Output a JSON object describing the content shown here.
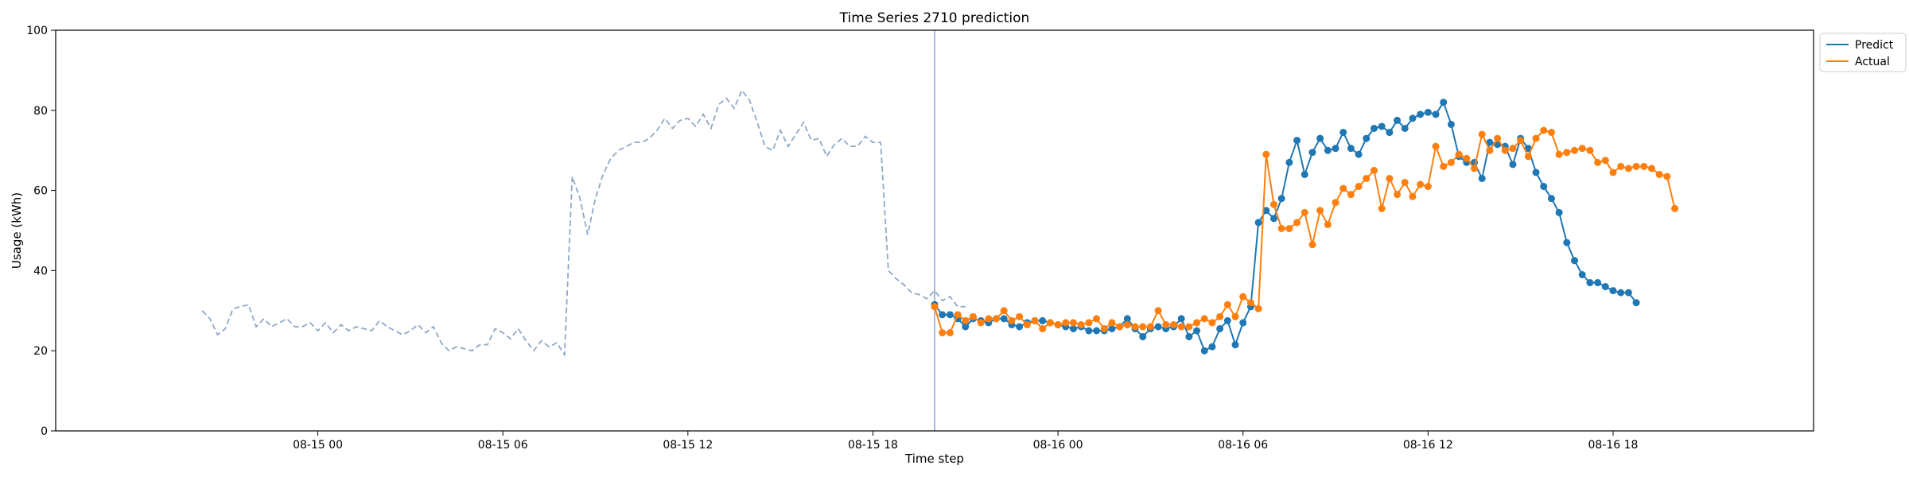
{
  "chart_data": {
    "type": "line",
    "title": "Time Series 2710 prediction",
    "xlabel": "Time step",
    "ylabel": "Usage (kWh)",
    "ylim": [
      0,
      100
    ],
    "y_ticks": [
      "0",
      "20",
      "40",
      "60",
      "80",
      "100"
    ],
    "x_ticks": [
      {
        "label": "08-15 00",
        "hour": 24
      },
      {
        "label": "08-15 06",
        "hour": 30
      },
      {
        "label": "08-15 12",
        "hour": 36
      },
      {
        "label": "08-15 18",
        "hour": 42
      },
      {
        "label": "08-16 00",
        "hour": 48
      },
      {
        "label": "08-16 06",
        "hour": 54
      },
      {
        "label": "08-16 12",
        "hour": 60
      },
      {
        "label": "08-16 18",
        "hour": 66
      }
    ],
    "x_range_hours": [
      15.5,
      72.5
    ],
    "forecast_start_hour": 44,
    "step_hours": 0.25,
    "legend": {
      "position": "top-right",
      "entries": [
        "Predict",
        "Actual"
      ]
    },
    "colors": {
      "history": "#8fa8c8",
      "predict": "#1f77b4",
      "actual": "#ff7f0e",
      "vline": "#8fa0d0"
    },
    "history": {
      "start_hour": 20.25,
      "values": [
        30,
        28,
        24,
        25.5,
        30.5,
        31,
        31.5,
        26,
        28,
        26,
        27,
        28,
        26,
        26,
        27,
        25,
        27,
        24.5,
        26.5,
        25,
        26,
        25.5,
        25,
        27.5,
        26,
        25,
        24,
        25,
        26.5,
        24.5,
        26,
        22,
        20,
        21,
        20.5,
        20,
        21.5,
        21.5,
        25.5,
        24.5,
        23,
        25.5,
        22.5,
        20,
        22.5,
        21,
        22,
        19,
        63.5,
        58,
        49,
        58,
        64,
        68,
        70,
        71,
        72,
        72,
        73,
        75,
        78,
        75.5,
        77.5,
        78,
        76,
        79,
        75.5,
        81.5,
        83,
        80.5,
        85,
        82.5,
        77,
        71,
        70,
        75,
        71,
        74,
        77,
        72.5,
        73,
        68.5,
        71.5,
        73,
        71,
        71,
        73.5,
        72,
        72,
        40,
        38,
        36.5,
        34.5,
        34,
        33,
        35,
        32.5,
        33.5,
        31,
        31
      ]
    },
    "series": [
      {
        "name": "Predict",
        "values": [
          31.5,
          29,
          29,
          28,
          26,
          28,
          27.5,
          27,
          28,
          28,
          26.5,
          26,
          27,
          27.5,
          27.5,
          27,
          26.5,
          26,
          25.5,
          26,
          25,
          25,
          25,
          25.5,
          26,
          28,
          25.5,
          23.5,
          25.5,
          26,
          25.5,
          26,
          28,
          23.5,
          25,
          20,
          21,
          25.5,
          27.5,
          21.5,
          27,
          31,
          52,
          55,
          53,
          58,
          67,
          72.5,
          64,
          69.5,
          73,
          70,
          70.5,
          74.5,
          70.5,
          69,
          73,
          75.5,
          76,
          74.5,
          77.5,
          75.5,
          78,
          79,
          79.5,
          79,
          82,
          76.5,
          68.5,
          67,
          67,
          63,
          72,
          71.5,
          71,
          66.5,
          73,
          70.5,
          64.5,
          61,
          58,
          54.5,
          47,
          42.5,
          39,
          37,
          37,
          36,
          35,
          34.5,
          34.5,
          32
        ]
      },
      {
        "name": "Actual",
        "values": [
          31,
          24.5,
          24.5,
          29,
          27.5,
          28.5,
          27,
          28,
          28,
          30,
          27.5,
          28.5,
          26.5,
          27.5,
          25.5,
          27,
          26.5,
          27,
          27,
          26.5,
          27,
          28,
          25.5,
          27,
          26,
          26.5,
          26,
          26,
          26,
          30,
          26.5,
          26.5,
          26,
          26,
          27,
          28,
          27,
          28.5,
          31.5,
          28.5,
          33.5,
          32,
          30.5,
          69,
          56.5,
          50.5,
          50.5,
          52,
          54.5,
          46.5,
          55,
          51.5,
          57,
          60.5,
          59,
          61,
          63,
          65,
          55.5,
          63,
          59,
          62,
          58.5,
          61.5,
          61,
          71,
          66,
          67,
          69,
          68,
          65.5,
          74,
          70,
          73,
          70,
          70.5,
          72.5,
          68.5,
          73,
          75,
          74.5,
          69,
          69.5,
          70,
          70.5,
          70,
          67,
          67.5,
          64.5,
          66,
          65.5,
          66,
          66,
          65.5,
          64,
          63.5,
          55.5
        ]
      }
    ]
  }
}
